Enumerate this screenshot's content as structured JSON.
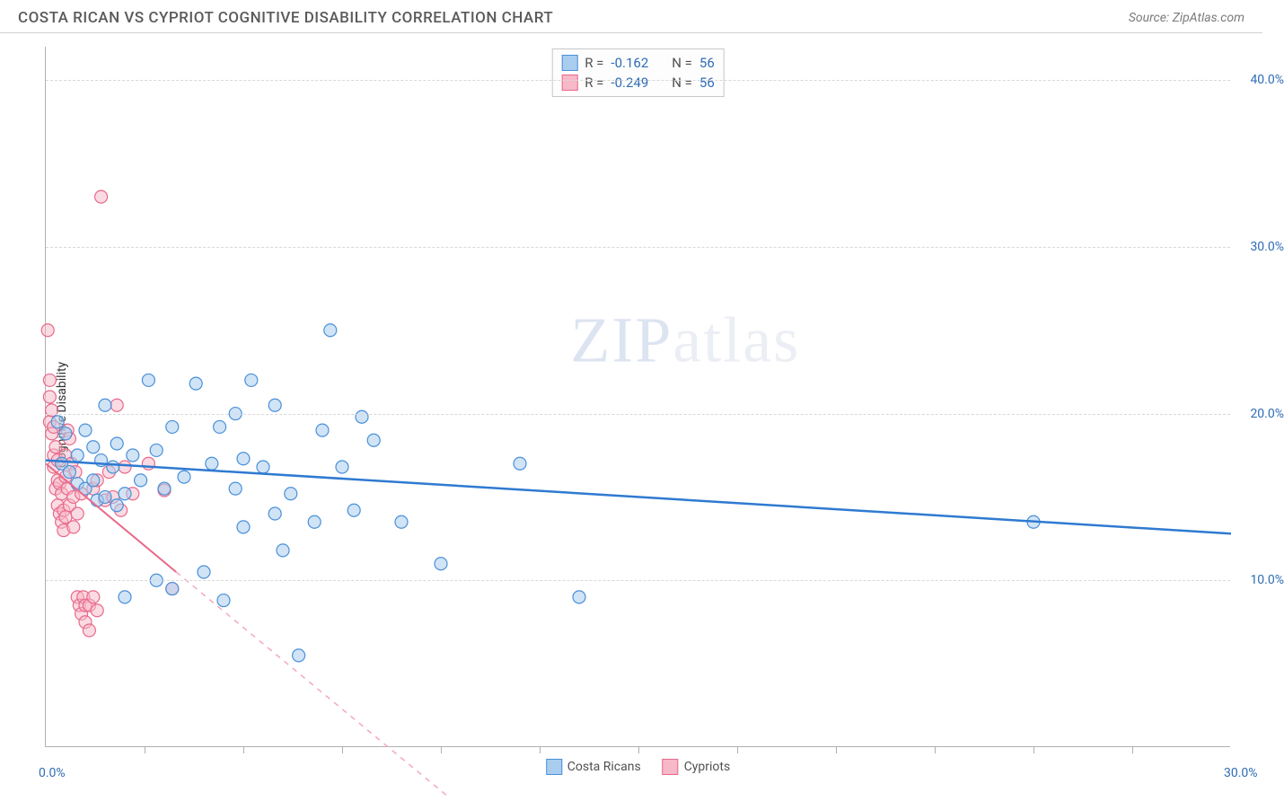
{
  "header": {
    "title": "COSTA RICAN VS CYPRIOT COGNITIVE DISABILITY CORRELATION CHART",
    "source": "Source: ZipAtlas.com"
  },
  "ylabel": "Cognitive Disability",
  "watermark": {
    "zip": "ZIP",
    "atlas": "atlas"
  },
  "chart": {
    "type": "scatter",
    "xlim": [
      0,
      30
    ],
    "ylim": [
      0,
      42
    ],
    "x_ticks_major": [
      0,
      30
    ],
    "x_ticks_minor": [
      2.5,
      5,
      7.5,
      10,
      12.5,
      15,
      17.5,
      20,
      22.5,
      25,
      27.5
    ],
    "y_ticks": [
      10,
      20,
      30,
      40
    ],
    "y_tick_labels": [
      "10.0%",
      "20.0%",
      "30.0%",
      "40.0%"
    ],
    "x_tick_labels": [
      "0.0%",
      "30.0%"
    ],
    "grid_color": "#d8d8d8",
    "axis_color": "#b0b0b0",
    "background_color": "#ffffff",
    "marker_radius": 7,
    "marker_stroke_width": 1.2,
    "line_width": 2
  },
  "series": [
    {
      "name": "Costa Ricans",
      "fill": "#a9cdef",
      "stroke": "#4a90d9",
      "fill_opacity": 0.55,
      "R": "-0.162",
      "N": "56",
      "trend": {
        "x1": 0,
        "y1": 17.2,
        "x2": 30,
        "y2": 12.8,
        "color": "#2f7ad1",
        "dash": "none"
      },
      "points": [
        [
          0.3,
          19.5
        ],
        [
          0.4,
          17.0
        ],
        [
          0.5,
          18.8
        ],
        [
          0.6,
          16.5
        ],
        [
          0.8,
          17.5
        ],
        [
          0.8,
          15.8
        ],
        [
          1.0,
          19.0
        ],
        [
          1.0,
          15.5
        ],
        [
          1.2,
          18.0
        ],
        [
          1.2,
          16.0
        ],
        [
          1.3,
          14.8
        ],
        [
          1.4,
          17.2
        ],
        [
          1.5,
          20.5
        ],
        [
          1.5,
          15.0
        ],
        [
          1.7,
          16.8
        ],
        [
          1.8,
          18.2
        ],
        [
          1.8,
          14.5
        ],
        [
          2.0,
          9.0
        ],
        [
          2.0,
          15.2
        ],
        [
          2.2,
          17.5
        ],
        [
          2.4,
          16.0
        ],
        [
          2.6,
          22.0
        ],
        [
          2.8,
          17.8
        ],
        [
          2.8,
          10.0
        ],
        [
          3.0,
          15.5
        ],
        [
          3.2,
          19.2
        ],
        [
          3.2,
          9.5
        ],
        [
          3.5,
          16.2
        ],
        [
          3.8,
          21.8
        ],
        [
          4.0,
          10.5
        ],
        [
          4.2,
          17.0
        ],
        [
          4.4,
          19.2
        ],
        [
          4.5,
          8.8
        ],
        [
          4.8,
          20.0
        ],
        [
          4.8,
          15.5
        ],
        [
          5.0,
          13.2
        ],
        [
          5.0,
          17.3
        ],
        [
          5.2,
          22.0
        ],
        [
          5.5,
          16.8
        ],
        [
          5.8,
          20.5
        ],
        [
          5.8,
          14.0
        ],
        [
          6.0,
          11.8
        ],
        [
          6.2,
          15.2
        ],
        [
          6.4,
          5.5
        ],
        [
          6.8,
          13.5
        ],
        [
          7.0,
          19.0
        ],
        [
          7.2,
          25.0
        ],
        [
          7.5,
          16.8
        ],
        [
          7.8,
          14.2
        ],
        [
          8.0,
          19.8
        ],
        [
          8.3,
          18.4
        ],
        [
          9.0,
          13.5
        ],
        [
          10.0,
          11.0
        ],
        [
          12.0,
          17.0
        ],
        [
          13.5,
          9.0
        ],
        [
          25.0,
          13.5
        ]
      ]
    },
    {
      "name": "Cypriots",
      "fill": "#f7b8c8",
      "stroke": "#e86a8a",
      "fill_opacity": 0.5,
      "R": "-0.249",
      "N": "56",
      "trend_solid": {
        "x1": 0,
        "y1": 17.0,
        "x2": 3.3,
        "y2": 10.5,
        "color": "#e86a8a"
      },
      "trend_dash": {
        "x1": 3.3,
        "y1": 10.5,
        "x2": 10.2,
        "y2": -3,
        "color": "#f4a8bc"
      },
      "points": [
        [
          0.05,
          25.0
        ],
        [
          0.1,
          22.0
        ],
        [
          0.1,
          21.0
        ],
        [
          0.1,
          19.5
        ],
        [
          0.15,
          20.2
        ],
        [
          0.15,
          18.8
        ],
        [
          0.2,
          19.2
        ],
        [
          0.2,
          17.5
        ],
        [
          0.2,
          16.8
        ],
        [
          0.25,
          18.0
        ],
        [
          0.25,
          15.5
        ],
        [
          0.3,
          17.2
        ],
        [
          0.3,
          16.0
        ],
        [
          0.3,
          14.5
        ],
        [
          0.35,
          15.8
        ],
        [
          0.35,
          14.0
        ],
        [
          0.4,
          15.2
        ],
        [
          0.4,
          13.5
        ],
        [
          0.45,
          14.2
        ],
        [
          0.45,
          13.0
        ],
        [
          0.5,
          17.5
        ],
        [
          0.5,
          16.2
        ],
        [
          0.5,
          13.8
        ],
        [
          0.55,
          19.0
        ],
        [
          0.55,
          15.5
        ],
        [
          0.6,
          18.5
        ],
        [
          0.6,
          14.5
        ],
        [
          0.65,
          17.0
        ],
        [
          0.7,
          15.0
        ],
        [
          0.7,
          13.2
        ],
        [
          0.75,
          16.5
        ],
        [
          0.8,
          14.0
        ],
        [
          0.8,
          9.0
        ],
        [
          0.85,
          8.5
        ],
        [
          0.9,
          15.2
        ],
        [
          0.9,
          8.0
        ],
        [
          0.95,
          9.0
        ],
        [
          1.0,
          8.5
        ],
        [
          1.0,
          7.5
        ],
        [
          1.1,
          7.0
        ],
        [
          1.1,
          8.5
        ],
        [
          1.2,
          15.5
        ],
        [
          1.2,
          9.0
        ],
        [
          1.3,
          8.2
        ],
        [
          1.3,
          16.0
        ],
        [
          1.4,
          33.0
        ],
        [
          1.5,
          14.8
        ],
        [
          1.6,
          16.5
        ],
        [
          1.7,
          15.0
        ],
        [
          1.8,
          20.5
        ],
        [
          1.9,
          14.2
        ],
        [
          2.0,
          16.8
        ],
        [
          2.2,
          15.2
        ],
        [
          2.6,
          17.0
        ],
        [
          3.0,
          15.4
        ],
        [
          3.2,
          9.5
        ]
      ]
    }
  ],
  "legend_top": {
    "R_label": "R =",
    "N_label": "N ="
  },
  "legend_bottom_labels": [
    "Costa Ricans",
    "Cypriots"
  ]
}
